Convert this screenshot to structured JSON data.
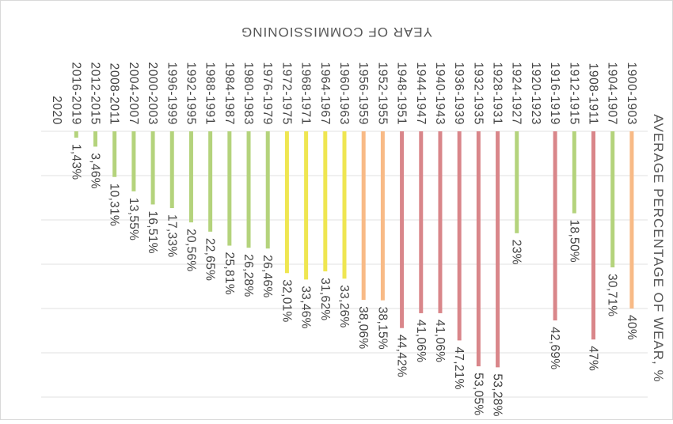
{
  "chart_data": {
    "type": "bar",
    "orientation": "vertical",
    "rotated_180": true,
    "title": "",
    "xlabel": "YEAR OF COMMISSIONING",
    "ylabel": "AVERAGE PERCENTAGE OF WEAR, %",
    "ylim": [
      0,
      60
    ],
    "grid": "horizontal",
    "legend": "none",
    "categories": [
      "1900-1903",
      "1904-1907",
      "1908-1911",
      "1912-1915",
      "1916-1919",
      "1920-1923",
      "1924-1927",
      "1928-1931",
      "1932-1935",
      "1936-1939",
      "1940-1943",
      "1944-1947",
      "1948-1951",
      "1952-1955",
      "1956-1959",
      "1960-1963",
      "1964-1967",
      "1968-1971",
      "1972-1975",
      "1976-1979",
      "1980-1983",
      "1984-1987",
      "1988-1991",
      "1992-1995",
      "1996-1999",
      "2000-2003",
      "2004-2007",
      "2008-2011",
      "2012-2015",
      "2016-2019",
      "2020"
    ],
    "values": [
      40,
      30.71,
      47,
      18.5,
      42.69,
      null,
      23,
      53.28,
      53.05,
      47.21,
      41.06,
      41.06,
      44.42,
      38.15,
      38.06,
      33.26,
      31.62,
      33.46,
      32.01,
      26.46,
      26.28,
      25.81,
      22.65,
      20.56,
      17.33,
      16.51,
      13.55,
      10.31,
      3.46,
      1.43,
      null
    ],
    "labels": [
      "40%",
      "30,71%",
      "47%",
      "18,50%",
      "42,69%",
      "",
      "23%",
      "53,28%",
      "53,05%",
      "47,21%",
      "41,06%",
      "41,06%",
      "44,42%",
      "38,15%",
      "38,06%",
      "33,26%",
      "31,62%",
      "33,46%",
      "32,01%",
      "26,46%",
      "26,28%",
      "25,81%",
      "22,65%",
      "20,56%",
      "17,33%",
      "16,51%",
      "13,55%",
      "10,31%",
      "3,46%",
      "1,43%",
      ""
    ],
    "colors": [
      "#f8ba86",
      "#b4d37c",
      "#d9868a",
      "#b4d37c",
      "#d9868a",
      null,
      "#b4d37c",
      "#d9868a",
      "#d9868a",
      "#d9868a",
      "#d9868a",
      "#d9868a",
      "#d9868a",
      "#f8ba86",
      "#f8ba86",
      "#efe651",
      "#efe651",
      "#efe651",
      "#efe651",
      "#b4d37c",
      "#b4d37c",
      "#b4d37c",
      "#b4d37c",
      "#b4d37c",
      "#b4d37c",
      "#b4d37c",
      "#b4d37c",
      "#b4d37c",
      "#b4d37c",
      "#b4d37c",
      null
    ]
  }
}
